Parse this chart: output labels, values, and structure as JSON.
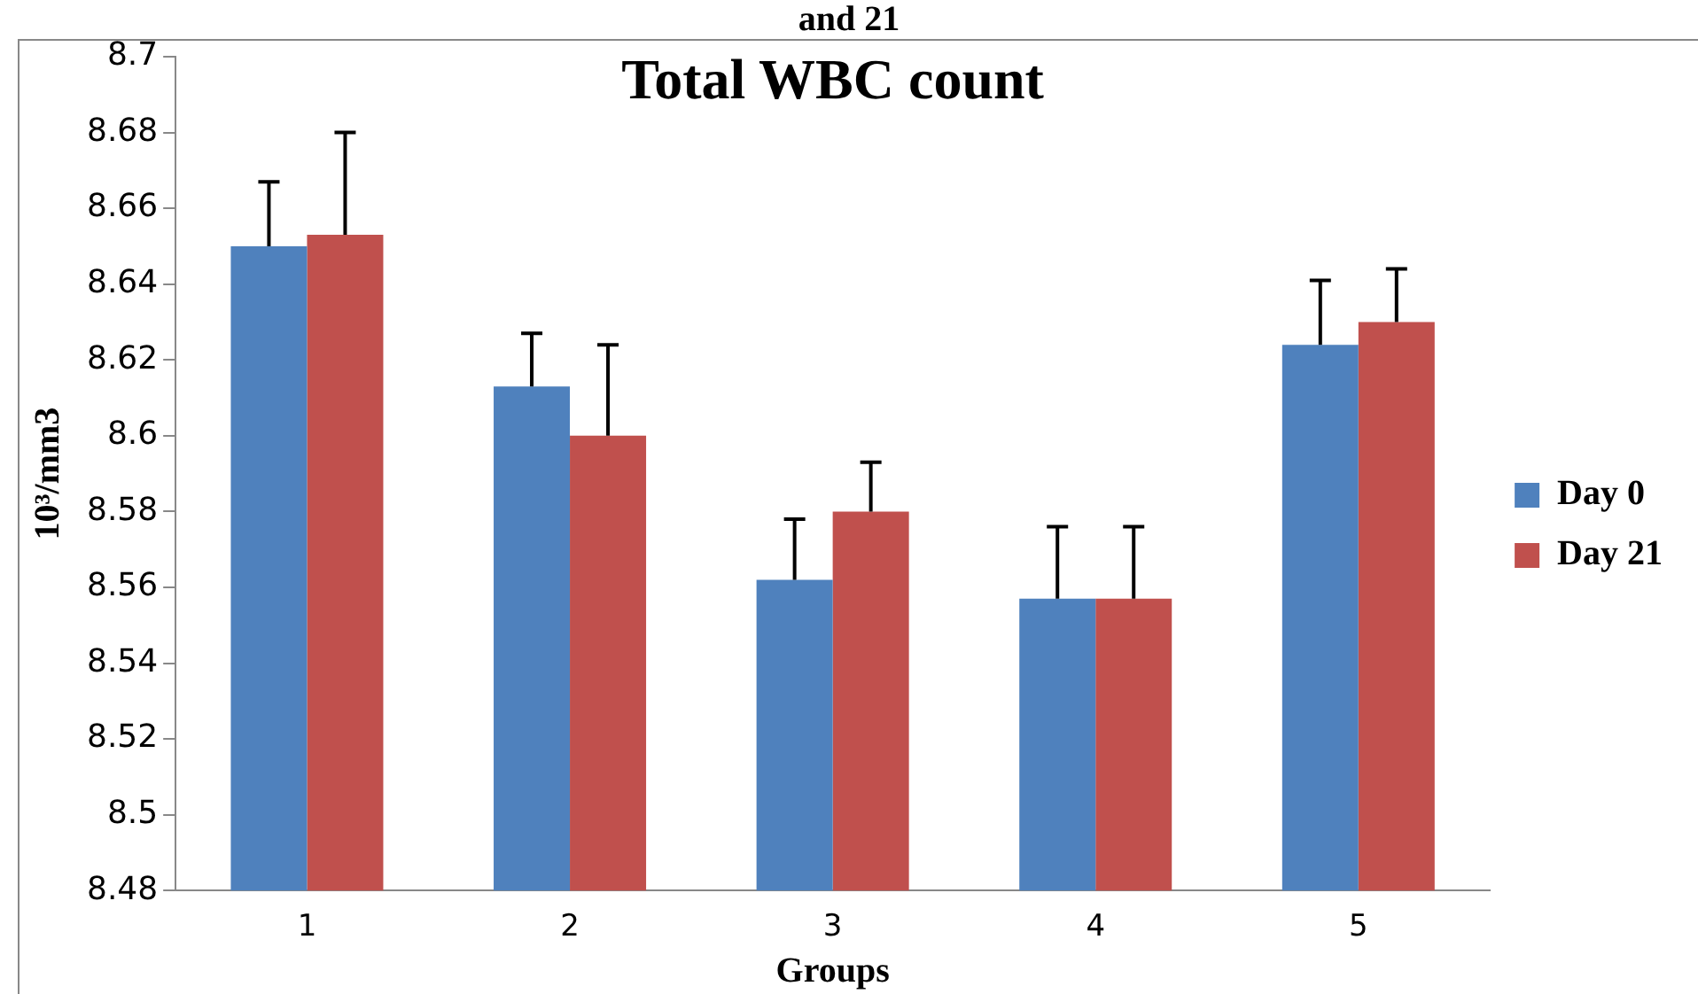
{
  "chart_data": {
    "type": "bar",
    "title": "Total WBC count",
    "xlabel": "Groups",
    "ylabel": "10³/mm3",
    "annotations": [
      "and 21"
    ],
    "categories": [
      "1",
      "2",
      "3",
      "4",
      "5"
    ],
    "series": [
      {
        "name": "Day 0",
        "color": "#4f81bd",
        "values": [
          8.65,
          8.613,
          8.562,
          8.557,
          8.624
        ],
        "errors": [
          [
            8.65,
            8.667
          ],
          [
            8.613,
            8.627
          ],
          [
            8.562,
            8.578
          ],
          [
            8.557,
            8.576
          ],
          [
            8.624,
            8.641
          ]
        ]
      },
      {
        "name": "Day 21",
        "color": "#c0504d",
        "values": [
          8.653,
          8.6,
          8.58,
          8.557,
          8.63
        ],
        "errors": [
          [
            8.653,
            8.68
          ],
          [
            8.6,
            8.624
          ],
          [
            8.58,
            8.593
          ],
          [
            8.557,
            8.576
          ],
          [
            8.63,
            8.644
          ]
        ]
      }
    ],
    "ylim": [
      8.48,
      8.7
    ],
    "yticks": [
      8.48,
      8.5,
      8.52,
      8.54,
      8.56,
      8.58,
      8.6,
      8.62,
      8.64,
      8.66,
      8.68,
      8.7
    ],
    "grid": false,
    "legend": "right"
  }
}
